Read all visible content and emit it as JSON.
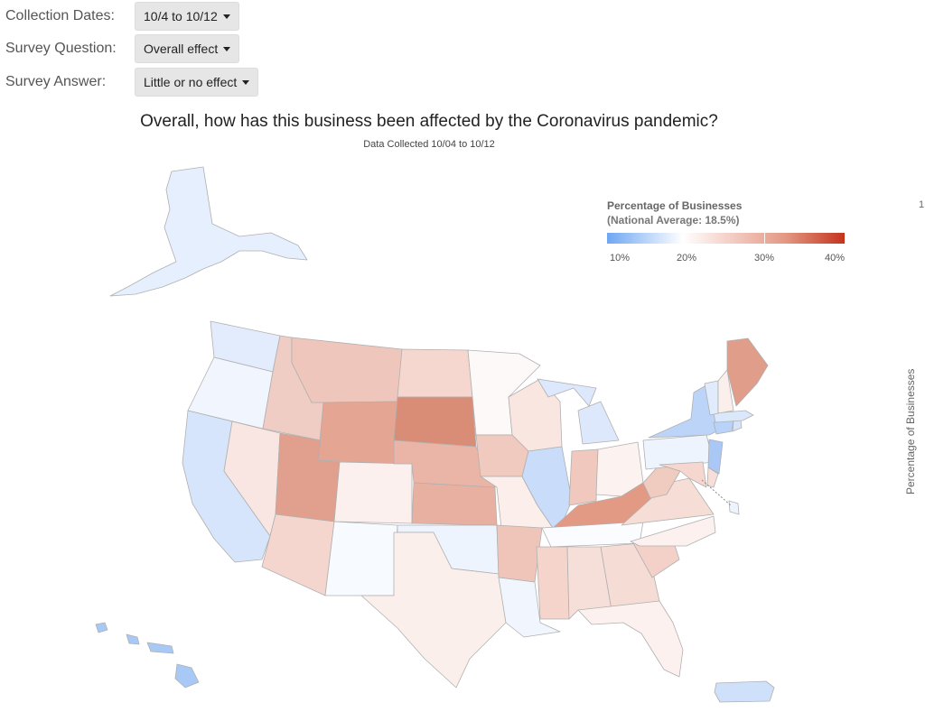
{
  "filters": [
    {
      "label": "Collection Dates:",
      "value": "10/4 to 10/12"
    },
    {
      "label": "Survey Question:",
      "value": "Overall effect"
    },
    {
      "label": "Survey Answer:",
      "value": "Little or no effect"
    }
  ],
  "map": {
    "title": "Overall, how has this business been affected by the Coronavirus pandemic?",
    "subtitle": "Data Collected 10/04 to 10/12",
    "legend": {
      "title": "Percentage of Businesses",
      "subtitle": "(National Average: 18.5%)",
      "ticks": [
        "10%",
        "20%",
        "30%",
        "40%"
      ],
      "min_color": "#6fa7f3",
      "mid_color": "#ffffff",
      "max_color": "#c4331c"
    },
    "side_axis_label": "Percentage of Businesses",
    "corner_mark": "1",
    "state_colors": {
      "alaska": "#e6effd",
      "hawaii": "#a8c8f5",
      "puerto-rico": "#cfe0fb",
      "washington": "#e3ecfc",
      "oregon": "#f1f6fe",
      "california": "#d6e5fb",
      "nevada": "#f9e6e2",
      "idaho": "#f0cdc4",
      "montana": "#efc6bb",
      "wyoming": "#e4a593",
      "utah": "#e1a08d",
      "arizona": "#f4d6ce",
      "colorado": "#fbf0ee",
      "new-mexico": "#f7faff",
      "north-dakota": "#f5d7cf",
      "south-dakota": "#d98d77",
      "nebraska": "#eab5a6",
      "kansas": "#e8b0a1",
      "oklahoma": "#eef4fe",
      "texas": "#fbefec",
      "minnesota": "#fdf9f8",
      "iowa": "#f0cabf",
      "missouri": "#fbeeeb",
      "arkansas": "#efc5ba",
      "louisiana": "#f1f6fe",
      "wisconsin": "#f9e6e1",
      "illinois": "#c9dcfa",
      "michigan": "#dde8fc",
      "indiana": "#f0c8bd",
      "ohio": "#fcf2f0",
      "kentucky": "#e39a85",
      "tennessee": "#fbfcff",
      "mississippi": "#f4d4cb",
      "alabama": "#f6dfd8",
      "georgia": "#f5dcd5",
      "florida": "#fcf1ef",
      "south-carolina": "#f3d1c8",
      "north-carolina": "#fcf1ee",
      "virginia": "#f6ddd6",
      "west-virginia": "#f0cbbf",
      "pennsylvania": "#eef4fe",
      "new-york": "#bcd4f8",
      "new-jersey": "#a9c8f5",
      "maryland": "#f5d7cf",
      "delaware": "#f6dfd8",
      "connecticut": "#b9d2f8",
      "rhode-island": "#d5e4fb",
      "massachusetts": "#dbe8fc",
      "vermont": "#e0ebfc",
      "new-hampshire": "#fbefec",
      "maine": "#df9d8a",
      "dc": "#eef4fe"
    }
  }
}
